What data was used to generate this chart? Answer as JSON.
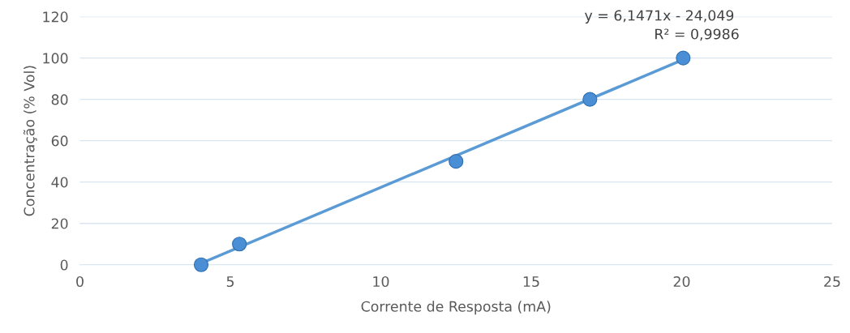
{
  "chart_data": {
    "type": "scatter",
    "xlabel": "Corrente de Resposta (mA)",
    "ylabel": "Concentração (% Vol)",
    "series": [
      {
        "color": "#4a8fd6",
        "x": [
          4.03,
          5.3,
          12.5,
          16.95,
          20.05
        ],
        "values": [
          0,
          10,
          50,
          80,
          100
        ],
        "marker": "circle"
      },
      {
        "type": "line",
        "color": "#5b9bd5",
        "x": [
          4.03,
          20.05
        ],
        "values": [
          0.7,
          99.2
        ],
        "line_style": "solid"
      }
    ],
    "annotations": [
      "y = 6,1471x - 24,049",
      "R² = 0,9986"
    ],
    "xlim": [
      0,
      25
    ],
    "xticks": [
      0,
      5,
      10,
      15,
      20,
      25
    ],
    "ylim": [
      0,
      120
    ],
    "yticks": [
      0,
      20,
      40,
      60,
      80,
      100,
      120
    ],
    "grid": "y"
  }
}
